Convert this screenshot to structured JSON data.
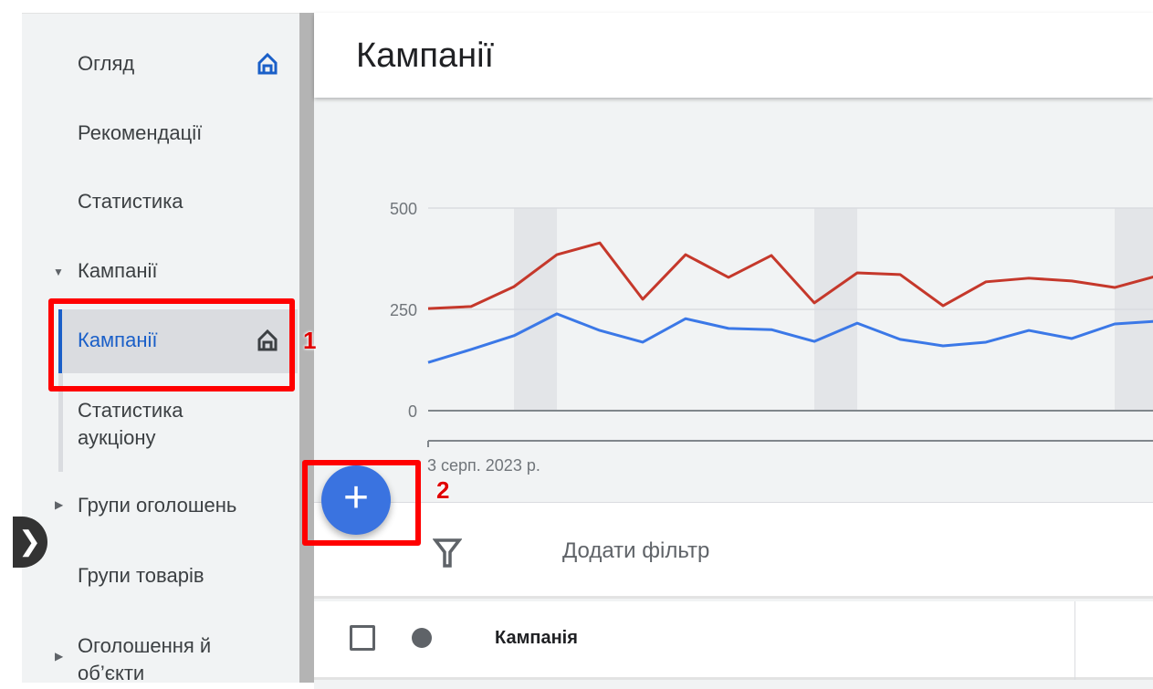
{
  "sidebar": {
    "items": [
      {
        "label": "Огляд",
        "icon": "home-icon"
      },
      {
        "label": "Рекомендації"
      },
      {
        "label": "Статистика"
      },
      {
        "label": "Кампанії",
        "expanded": true
      },
      {
        "label": "Кампанії",
        "selected": true,
        "icon": "home-icon"
      },
      {
        "label": "Статистика аукціону"
      },
      {
        "label": "Групи оголошень",
        "expanded": false
      },
      {
        "label": "Групи товарів"
      },
      {
        "label": "Оголошення й об’єкти",
        "expanded": false
      }
    ]
  },
  "header": {
    "title": "Кампанії"
  },
  "chart_data": {
    "type": "line",
    "ylim": [
      0,
      500
    ],
    "yticks": [
      "500",
      "250",
      "0"
    ],
    "x_label_first": "3 серп. 2023 р.",
    "series": [
      {
        "color": "#c5382b",
        "values": [
          252,
          257,
          306,
          385,
          414,
          275,
          385,
          329,
          383,
          266,
          340,
          336,
          259,
          318,
          327,
          320,
          304,
          333
        ]
      },
      {
        "color": "#3b78e7",
        "values": [
          119,
          151,
          185,
          239,
          198,
          169,
          227,
          203,
          200,
          171,
          216,
          176,
          160,
          169,
          198,
          178,
          214,
          221
        ]
      }
    ],
    "shaded_weekend_indices": [
      [
        2,
        3
      ],
      [
        9,
        10
      ],
      [
        16,
        17
      ]
    ],
    "grid": true
  },
  "fab": {
    "label": "+",
    "color": "#3a73e0"
  },
  "filter": {
    "label": "Додати фільтр",
    "icon": "filter-icon"
  },
  "table": {
    "columns": [
      "Кампанія"
    ]
  },
  "annotations": [
    "1",
    "2"
  ],
  "accent": "#1a5fc8"
}
